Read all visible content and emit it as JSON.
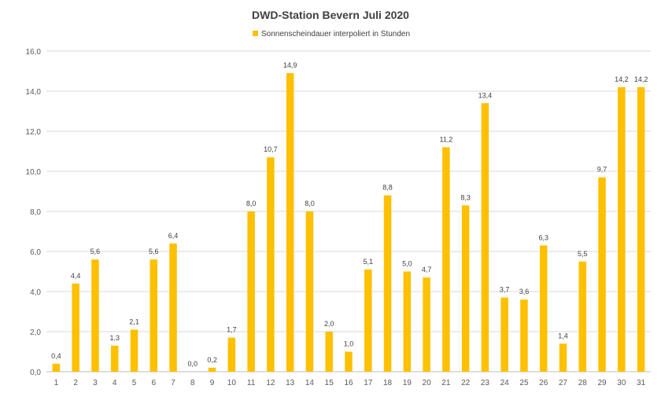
{
  "chart_data": {
    "type": "bar",
    "title": "DWD-Station  Bevern Juli 2020",
    "legend": "Sonnenscheindauer interpoliert in Stunden",
    "legend_position": "top-center",
    "xlabel": "",
    "ylabel": "",
    "ylim": [
      0,
      16
    ],
    "ytick_step": 2,
    "ytick_labels": [
      "0,0",
      "2,0",
      "4,0",
      "6,0",
      "8,0",
      "10,0",
      "12,0",
      "14,0",
      "16,0"
    ],
    "grid": true,
    "color": "#FFC000",
    "categories": [
      "1",
      "2",
      "3",
      "4",
      "5",
      "6",
      "7",
      "8",
      "9",
      "10",
      "11",
      "12",
      "13",
      "14",
      "15",
      "16",
      "17",
      "18",
      "19",
      "20",
      "21",
      "22",
      "23",
      "24",
      "25",
      "26",
      "27",
      "28",
      "29",
      "30",
      "31"
    ],
    "values": [
      0.4,
      4.4,
      5.6,
      1.3,
      2.1,
      5.6,
      6.4,
      0.0,
      0.2,
      1.7,
      8.0,
      10.7,
      14.9,
      8.0,
      2.0,
      1.0,
      5.1,
      8.8,
      5.0,
      4.7,
      11.2,
      8.3,
      13.4,
      3.7,
      3.6,
      6.3,
      1.4,
      5.5,
      9.7,
      14.2,
      14.2
    ],
    "data_labels": [
      "0,4",
      "4,4",
      "5,6",
      "1,3",
      "2,1",
      "5,6",
      "6,4",
      "0,0",
      "0,2",
      "1,7",
      "8,0",
      "10,7",
      "14,9",
      "8,0",
      "2,0",
      "1,0",
      "5,1",
      "8,8",
      "5,0",
      "4,7",
      "11,2",
      "8,3",
      "13,4",
      "3,7",
      "3,6",
      "6,3",
      "1,4",
      "5,5",
      "9,7",
      "14,2",
      "14,2"
    ]
  }
}
